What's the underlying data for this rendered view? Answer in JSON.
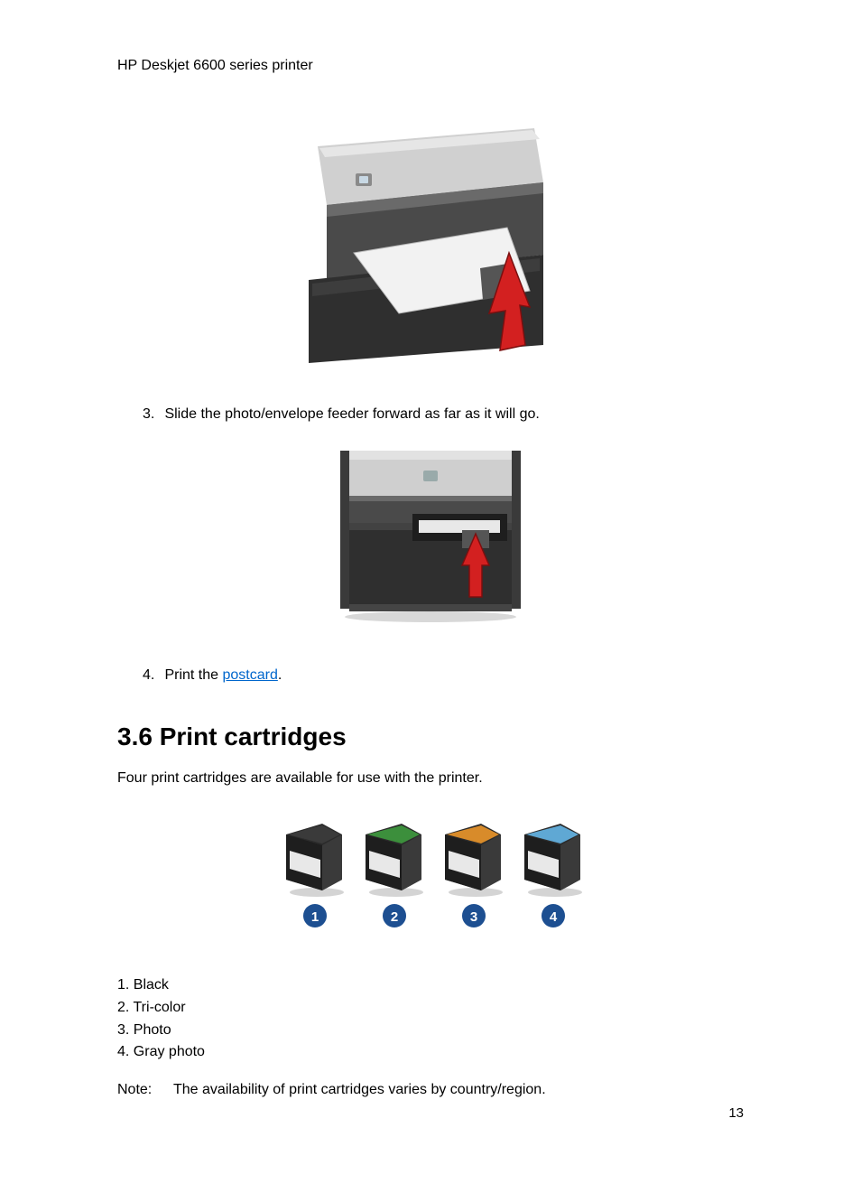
{
  "header": {
    "title": "HP Deskjet 6600 series printer"
  },
  "steps": {
    "step3": {
      "num": "3.",
      "text": "Slide the photo/envelope feeder forward as far as it will go."
    },
    "step4": {
      "num": "4.",
      "pre": "Print the ",
      "link": "postcard",
      "post": "."
    }
  },
  "section": {
    "heading": "3.6  Print cartridges",
    "intro": "Four print cartridges are available for use with the printer."
  },
  "cartridges": {
    "labels": [
      "1",
      "2",
      "3",
      "4"
    ],
    "top_colors": [
      "#3a3a3a",
      "#3c8f3c",
      "#d88b2a",
      "#5fa8d4"
    ],
    "badge_bg": "#1d4f91",
    "badge_fg": "#ffffff"
  },
  "legend": {
    "items": [
      {
        "num": "1.",
        "label": "Black"
      },
      {
        "num": "2.",
        "label": "Tri-color"
      },
      {
        "num": "3.",
        "label": "Photo"
      },
      {
        "num": "4.",
        "label": "Gray photo"
      }
    ]
  },
  "note": {
    "label": "Note:",
    "text": "The availability of print cartridges varies by country/region."
  },
  "page_number": "13",
  "colors": {
    "text": "#000000",
    "link": "#0066cc",
    "printer_body_light": "#c8c8c8",
    "printer_body_dark": "#4a4a4a",
    "printer_body_darker": "#2f2f2f",
    "paper": "#f2f2f2",
    "arrow": "#d32020",
    "cartridge_body": "#2b2b2b"
  }
}
